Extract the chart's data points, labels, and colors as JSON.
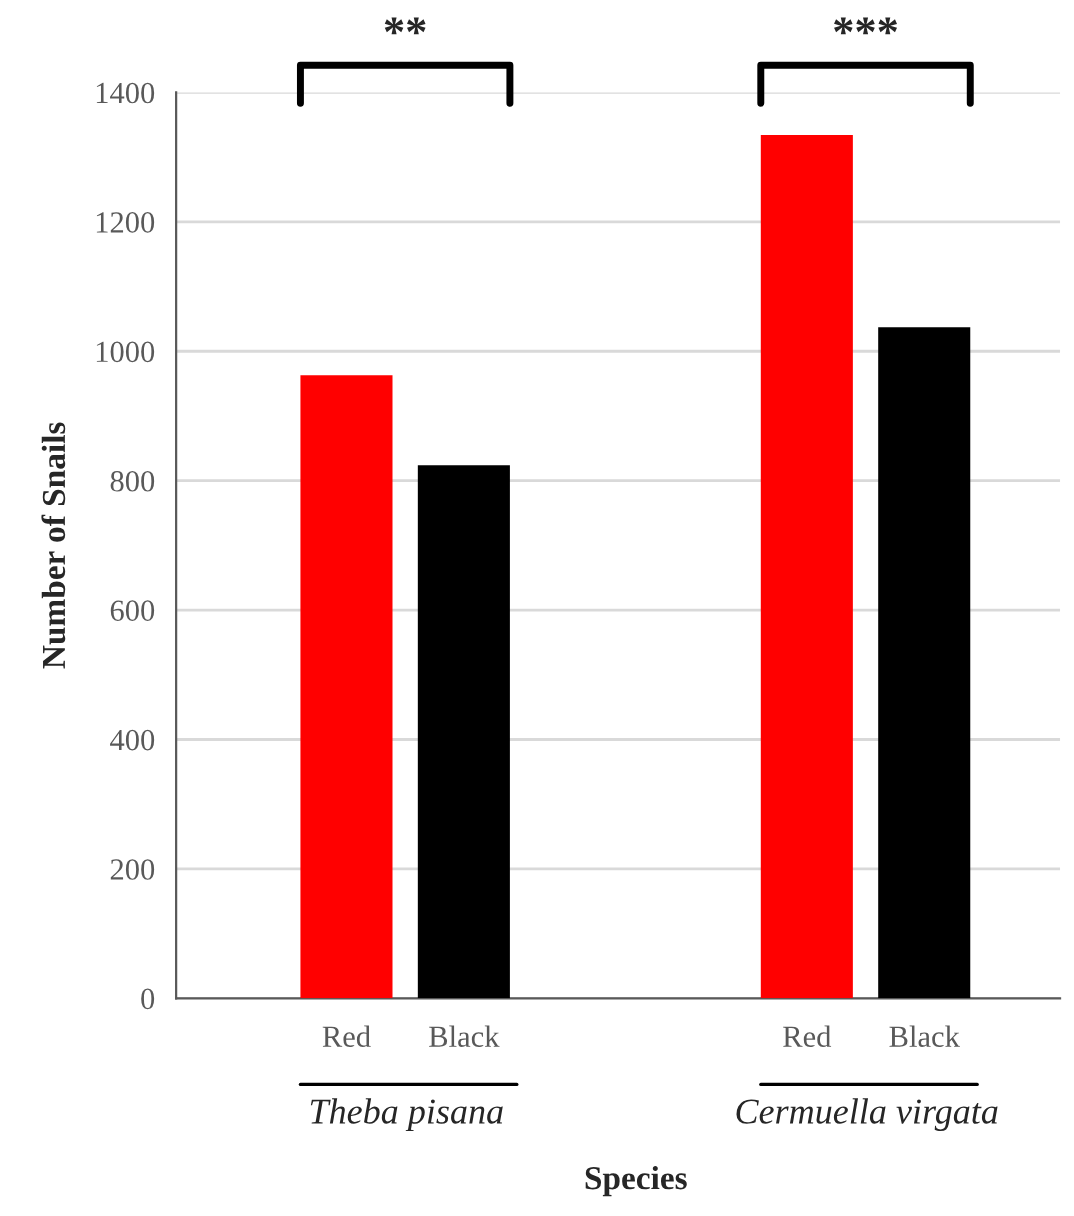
{
  "chart_data": {
    "type": "bar",
    "xlabel": "Species",
    "ylabel": "Number of Snails",
    "categories": [
      "Theba pisana",
      "Cermuella virgata"
    ],
    "series": [
      {
        "name": "Red",
        "color": "#ff0000",
        "values": [
          963,
          1334
        ]
      },
      {
        "name": "Black",
        "color": "#000000",
        "values": [
          824,
          1037
        ]
      }
    ],
    "ylim": [
      0,
      1400
    ],
    "yticks": [
      0,
      200,
      400,
      600,
      800,
      1000,
      1200,
      1400
    ],
    "grid": "y",
    "legend": false,
    "annotations": [
      "**",
      "***"
    ]
  }
}
